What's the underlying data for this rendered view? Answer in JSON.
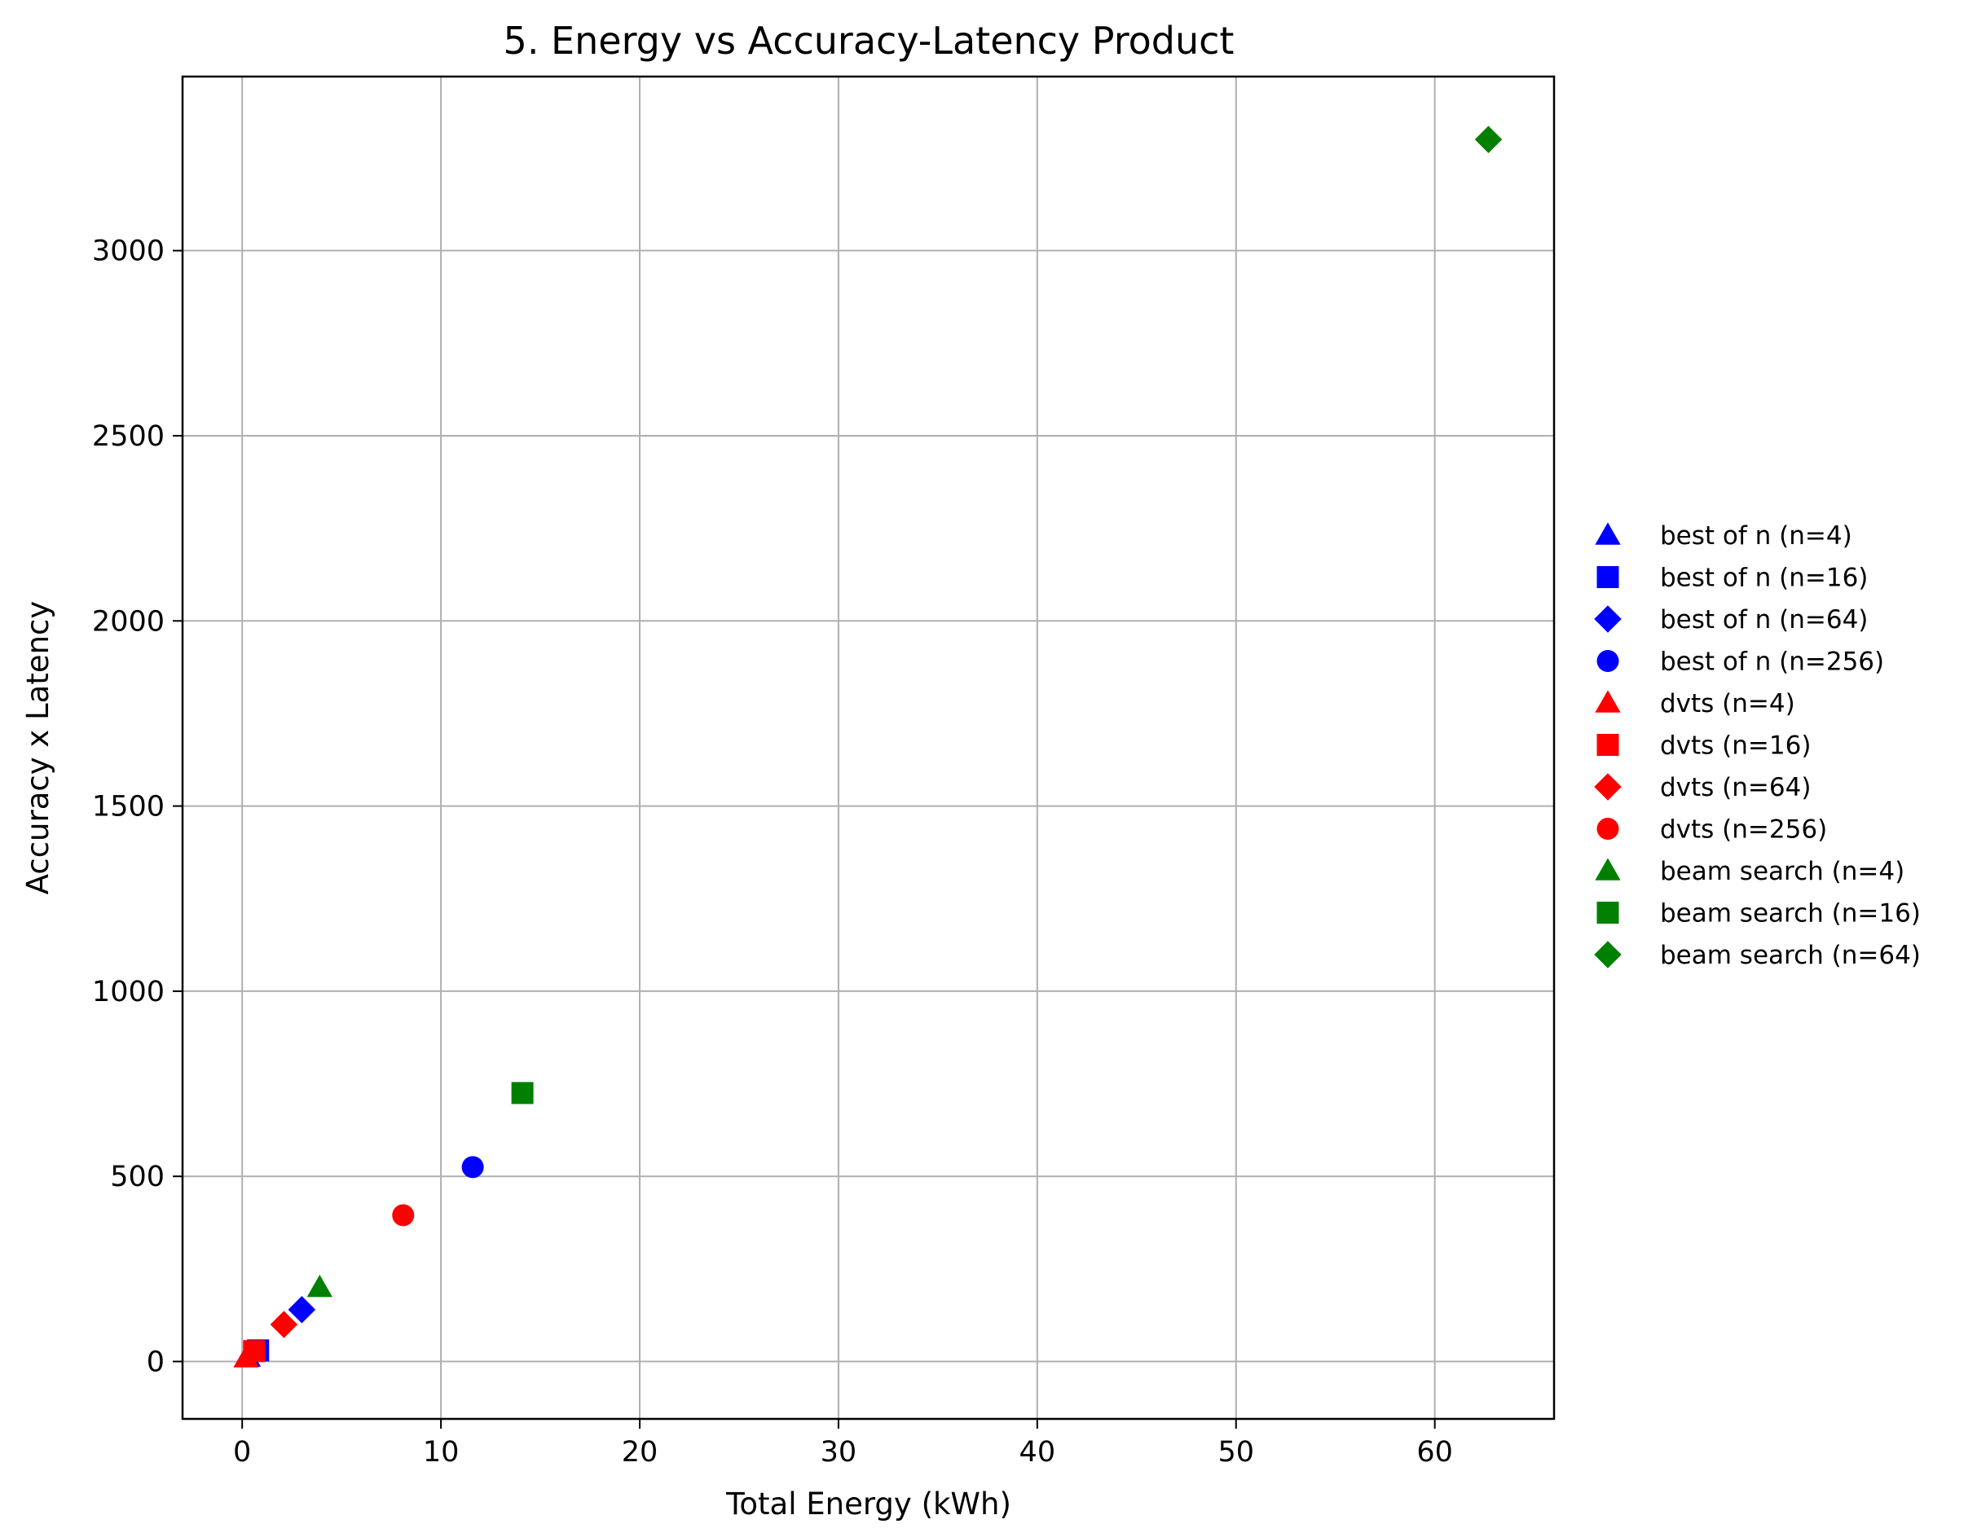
{
  "chart_data": {
    "type": "scatter",
    "title": "5. Energy vs Accuracy-Latency Product",
    "xlabel": "Total Energy (kWh)",
    "ylabel": "Accuracy x Latency",
    "xlim": [
      -3,
      66
    ],
    "ylim": [
      -155,
      3470
    ],
    "xticks": [
      0,
      10,
      20,
      30,
      40,
      50,
      60
    ],
    "yticks": [
      0,
      500,
      1000,
      1500,
      2000,
      2500,
      3000
    ],
    "grid": true,
    "legend_position": "right-outside",
    "colors": {
      "best_of_n": "#0000ff",
      "dvts": "#ff0000",
      "beam_search": "#008000"
    },
    "series": [
      {
        "name": "best of n (n=4)",
        "marker": "triangle",
        "color": "#0000ff",
        "x": [
          0.3
        ],
        "y": [
          12
        ]
      },
      {
        "name": "best of n (n=16)",
        "marker": "square",
        "color": "#0000ff",
        "x": [
          0.8
        ],
        "y": [
          30
        ]
      },
      {
        "name": "best of n (n=64)",
        "marker": "diamond",
        "color": "#0000ff",
        "x": [
          3.0
        ],
        "y": [
          140
        ]
      },
      {
        "name": "best of n (n=256)",
        "marker": "circle",
        "color": "#0000ff",
        "x": [
          11.6
        ],
        "y": [
          525
        ]
      },
      {
        "name": "dvts (n=4)",
        "marker": "triangle",
        "color": "#ff0000",
        "x": [
          0.2
        ],
        "y": [
          10
        ]
      },
      {
        "name": "dvts (n=16)",
        "marker": "square",
        "color": "#ff0000",
        "x": [
          0.6
        ],
        "y": [
          28
        ]
      },
      {
        "name": "dvts (n=64)",
        "marker": "diamond",
        "color": "#ff0000",
        "x": [
          2.1
        ],
        "y": [
          100
        ]
      },
      {
        "name": "dvts (n=256)",
        "marker": "circle",
        "color": "#ff0000",
        "x": [
          8.1
        ],
        "y": [
          395
        ]
      },
      {
        "name": "beam search (n=4)",
        "marker": "triangle",
        "color": "#008000",
        "x": [
          3.9
        ],
        "y": [
          200
        ]
      },
      {
        "name": "beam search (n=16)",
        "marker": "square",
        "color": "#008000",
        "x": [
          14.1
        ],
        "y": [
          725
        ]
      },
      {
        "name": "beam search (n=64)",
        "marker": "diamond",
        "color": "#008000",
        "x": [
          62.7
        ],
        "y": [
          3300
        ]
      }
    ]
  }
}
